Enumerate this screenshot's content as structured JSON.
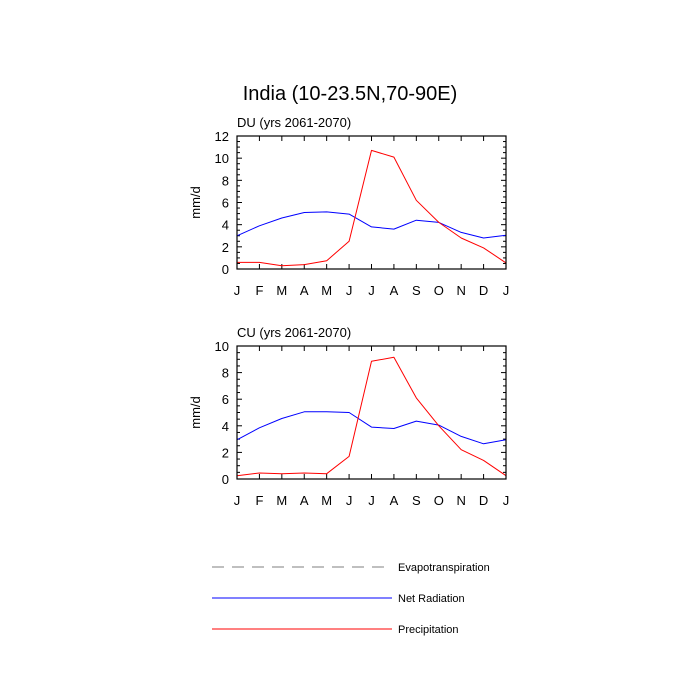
{
  "title": "India (10-23.5N,70-90E)",
  "legend": {
    "placement": "bottom-center",
    "entries": [
      {
        "label": "Evapotranspiration",
        "color": "#999999",
        "style": "dashed"
      },
      {
        "label": "Net Radiation",
        "color": "#0000ff",
        "style": "solid"
      },
      {
        "label": "Precipitation",
        "color": "#ff0000",
        "style": "solid"
      }
    ]
  },
  "chart_data": [
    {
      "type": "line",
      "title": "DU (yrs 2061-2070)",
      "xlabel": "",
      "ylabel": "mm/d",
      "categories": [
        "J",
        "F",
        "M",
        "A",
        "M",
        "J",
        "J",
        "A",
        "S",
        "O",
        "N",
        "D",
        "J"
      ],
      "ylim": [
        0,
        12
      ],
      "yticks": [
        0,
        2,
        4,
        6,
        8,
        10,
        12
      ],
      "series": [
        {
          "name": "Net Radiation",
          "color": "#0000ff",
          "values": [
            3.0,
            3.9,
            4.6,
            5.1,
            5.15,
            4.95,
            3.8,
            3.6,
            4.4,
            4.2,
            3.3,
            2.8,
            3.05
          ]
        },
        {
          "name": "Precipitation",
          "color": "#ff0000",
          "values": [
            0.6,
            0.6,
            0.3,
            0.4,
            0.75,
            2.5,
            10.7,
            10.1,
            6.2,
            4.2,
            2.8,
            1.9,
            0.55
          ]
        }
      ]
    },
    {
      "type": "line",
      "title": "CU (yrs 2061-2070)",
      "xlabel": "",
      "ylabel": "mm/d",
      "categories": [
        "J",
        "F",
        "M",
        "A",
        "M",
        "J",
        "J",
        "A",
        "S",
        "O",
        "N",
        "D",
        "J"
      ],
      "ylim": [
        0,
        10
      ],
      "yticks": [
        0,
        2,
        4,
        6,
        8,
        10
      ],
      "series": [
        {
          "name": "Net Radiation",
          "color": "#0000ff",
          "values": [
            2.95,
            3.85,
            4.55,
            5.05,
            5.05,
            5.0,
            3.9,
            3.8,
            4.35,
            4.05,
            3.2,
            2.65,
            2.95
          ]
        },
        {
          "name": "Precipitation",
          "color": "#ff0000",
          "values": [
            0.25,
            0.45,
            0.4,
            0.45,
            0.4,
            1.7,
            8.85,
            9.15,
            6.1,
            4.0,
            2.2,
            1.4,
            0.25
          ]
        }
      ]
    }
  ]
}
